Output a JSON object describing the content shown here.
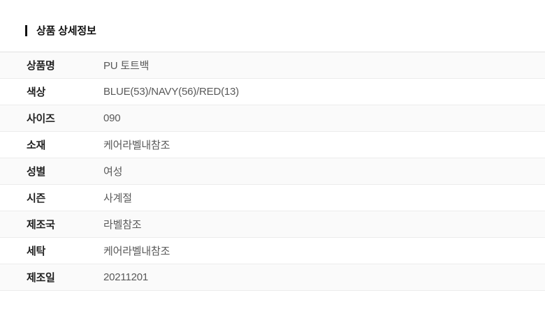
{
  "header": {
    "title": "상품 상세정보"
  },
  "table": {
    "rows": [
      {
        "label": "상품명",
        "value": "PU 토트백"
      },
      {
        "label": "색상",
        "value": "BLUE(53)/NAVY(56)/RED(13)"
      },
      {
        "label": "사이즈",
        "value": "090"
      },
      {
        "label": "소재",
        "value": "케어라벨내참조"
      },
      {
        "label": "성별",
        "value": "여성"
      },
      {
        "label": "시즌",
        "value": "사계절"
      },
      {
        "label": "제조국",
        "value": "라벨참조"
      },
      {
        "label": "세탁",
        "value": "케어라벨내참조"
      },
      {
        "label": "제조일",
        "value": "20211201"
      }
    ]
  },
  "colors": {
    "accent": "#111111",
    "title-color": "#111111",
    "label-color": "#222222",
    "value-color": "#595959",
    "row-odd-bg": "#fafafa",
    "row-even-bg": "#ffffff",
    "border-strong": "#e0e0e0",
    "border-light": "#ececec",
    "page-bg": "#ffffff"
  }
}
